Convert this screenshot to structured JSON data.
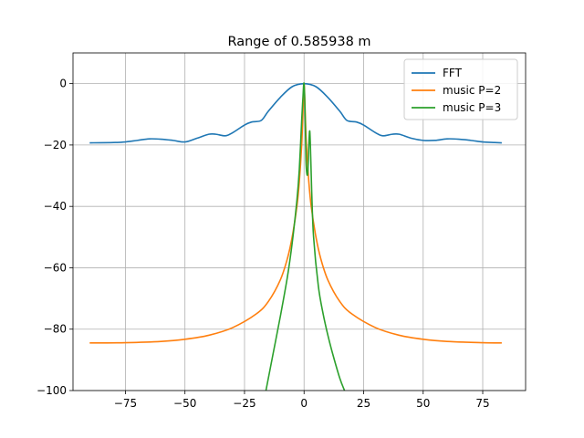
{
  "chart_data": {
    "type": "line",
    "title": "Range of 0.585938 m",
    "xlabel": "",
    "ylabel": "",
    "xlim": [
      -97,
      93
    ],
    "ylim": [
      -100,
      10
    ],
    "xticks": [
      -75,
      -50,
      -25,
      0,
      25,
      50,
      75
    ],
    "yticks": [
      0,
      -20,
      -40,
      -60,
      -80,
      -100
    ],
    "grid": true,
    "legend": "top-right",
    "series": [
      {
        "name": "FFT",
        "color": "#1f77b4",
        "x": [
          -90,
          -80,
          -75,
          -70,
          -65,
          -60,
          -55,
          -50,
          -45,
          -40,
          -37,
          -33,
          -30,
          -25,
          -22,
          -18,
          -15,
          -10,
          -5,
          0,
          5,
          10,
          15,
          18,
          22,
          25,
          30,
          33,
          37,
          40,
          45,
          50,
          55,
          60,
          65,
          70,
          75,
          80,
          83
        ],
        "y": [
          -19.3,
          -19.2,
          -19.0,
          -18.5,
          -18.0,
          -18.1,
          -18.5,
          -19.0,
          -17.8,
          -16.5,
          -16.5,
          -17.0,
          -16.0,
          -13.5,
          -12.5,
          -12.0,
          -9.0,
          -4.5,
          -1.0,
          0.0,
          -1.0,
          -4.5,
          -9.0,
          -12.0,
          -12.5,
          -13.5,
          -16.0,
          -17.0,
          -16.5,
          -16.5,
          -17.8,
          -18.5,
          -18.5,
          -18.0,
          -18.1,
          -18.5,
          -19.0,
          -19.2,
          -19.3
        ]
      },
      {
        "name": "music P=2",
        "color": "#ff7f0e",
        "x": [
          -90,
          -75,
          -60,
          -50,
          -40,
          -30,
          -20,
          -15,
          -10,
          -7,
          -5,
          -3,
          -2,
          -1,
          -0.5,
          0,
          0.5,
          1,
          2,
          3,
          5,
          7,
          10,
          15,
          20,
          30,
          40,
          50,
          60,
          75,
          83
        ],
        "y": [
          -84.5,
          -84.4,
          -84.0,
          -83.3,
          -82.0,
          -79.5,
          -75.0,
          -71.0,
          -64.0,
          -57.0,
          -50.0,
          -40.0,
          -32.0,
          -20.0,
          -10.0,
          0.0,
          -10.0,
          -20.0,
          -32.0,
          -40.0,
          -50.0,
          -57.0,
          -64.0,
          -71.0,
          -75.0,
          -79.5,
          -82.0,
          -83.3,
          -84.0,
          -84.4,
          -84.5
        ]
      },
      {
        "name": "music P=3",
        "color": "#2ca02c",
        "x": [
          -16,
          -13,
          -10,
          -7,
          -5,
          -3,
          -2,
          -1,
          -0.5,
          0,
          0.5,
          0.8,
          1.2,
          1.6,
          2.0,
          2.4,
          2.8,
          3.2,
          4,
          6,
          8,
          10,
          12,
          15,
          17
        ],
        "y": [
          -100,
          -88,
          -76,
          -63,
          -52,
          -38,
          -28,
          -12,
          -5,
          0,
          -12,
          -25,
          -29.5,
          -28.5,
          -20,
          -15.5,
          -24,
          -35,
          -50,
          -66,
          -75,
          -82,
          -88,
          -96,
          -100
        ]
      }
    ]
  }
}
